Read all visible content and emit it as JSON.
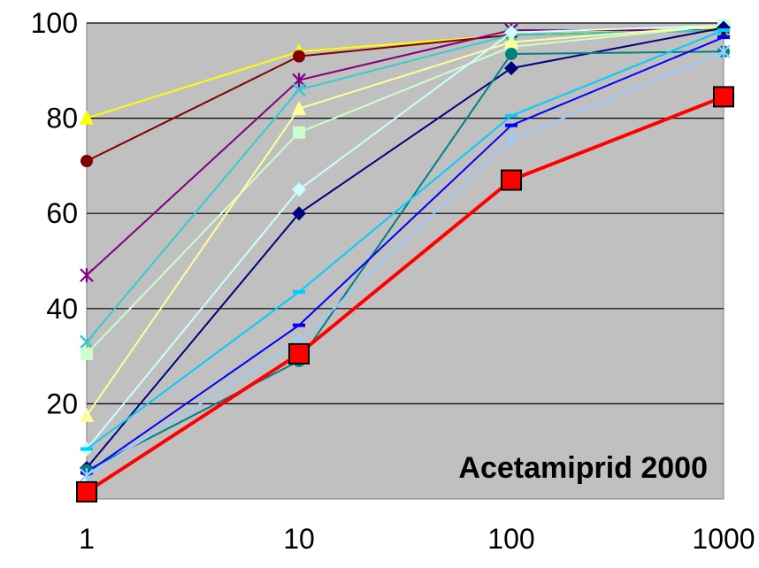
{
  "chart_data": {
    "type": "line",
    "x_scale": "log",
    "x": [
      1,
      10,
      100,
      1000
    ],
    "xticks": [
      "1",
      "10",
      "100",
      "1000"
    ],
    "yticks": [
      "20",
      "40",
      "60",
      "80",
      "100"
    ],
    "ylim": [
      0,
      100
    ],
    "grid": "horizontal",
    "plot_background": "#c0c0c0",
    "annotation": "Acetamiprid 2000",
    "series": [
      {
        "color": "#ffff00",
        "marker": "triangle",
        "values": [
          80,
          94,
          97.5,
          99
        ]
      },
      {
        "color": "#800000",
        "marker": "circle",
        "values": [
          71,
          93,
          97.5,
          98.5
        ]
      },
      {
        "color": "#800080",
        "marker": "star",
        "values": [
          47,
          88,
          98.5,
          98.5
        ]
      },
      {
        "color": "#33cccc",
        "marker": "x",
        "values": [
          33,
          86,
          97.5,
          98.5
        ]
      },
      {
        "color": "#ccffcc",
        "marker": "square",
        "values": [
          30.5,
          77,
          95,
          99.5
        ]
      },
      {
        "color": "#ffff99",
        "marker": "triangle",
        "values": [
          17.5,
          82,
          96,
          99.5
        ]
      },
      {
        "color": "#ccffff",
        "marker": "diamond",
        "values": [
          10.5,
          65,
          98,
          99.5
        ]
      },
      {
        "color": "#000080",
        "marker": "diamond",
        "values": [
          6.5,
          60,
          90.5,
          99
        ]
      },
      {
        "color": "#008080",
        "marker": "circle",
        "values": [
          6,
          29,
          93.5,
          94
        ]
      },
      {
        "color": "#00ccff",
        "marker": "dash",
        "values": [
          10.5,
          43.5,
          80.5,
          98.5
        ]
      },
      {
        "color": "#0000ff",
        "marker": "dash",
        "values": [
          5.5,
          36.5,
          78.5,
          97
        ]
      },
      {
        "color": "#99ccff",
        "marker": "star",
        "values": [
          5,
          33,
          75.5,
          94
        ]
      },
      {
        "color": "#ff0000",
        "marker": "big-square",
        "values": [
          1.5,
          30.5,
          67,
          84.5
        ]
      }
    ]
  }
}
